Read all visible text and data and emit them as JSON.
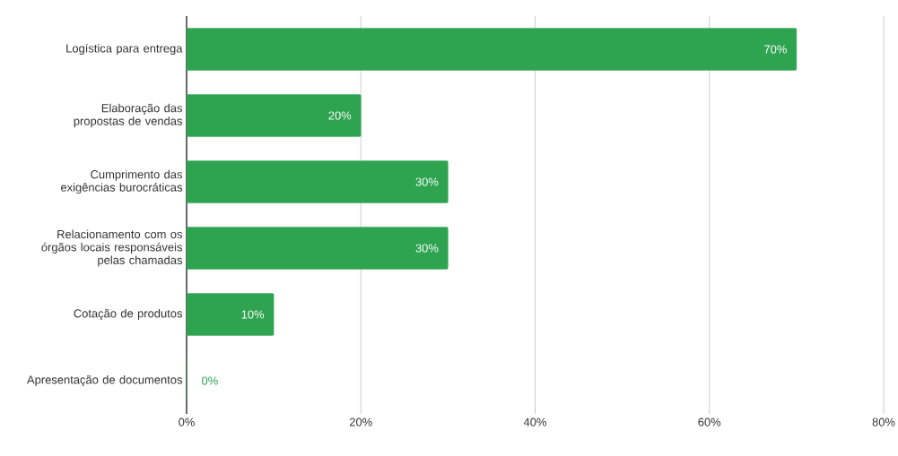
{
  "chart_data": {
    "type": "bar",
    "orientation": "horizontal",
    "categories": [
      "Logística para entrega",
      "Elaboração das propostas de vendas",
      "Cumprimento das exigências burocráticas",
      "Relacionamento com os órgãos locais responsáveis pelas chamadas",
      "Cotação de produtos",
      "Apresentação de documentos"
    ],
    "values": [
      70,
      20,
      30,
      30,
      10,
      0
    ],
    "value_labels": [
      "70%",
      "20%",
      "30%",
      "30%",
      "10%",
      "0%"
    ],
    "color": "#2ea350",
    "xlim": [
      0,
      80
    ],
    "xticks": [
      {
        "value": 0,
        "label": "0%"
      },
      {
        "value": 20,
        "label": "20%"
      },
      {
        "value": 40,
        "label": "40%"
      },
      {
        "value": 60,
        "label": "60%"
      },
      {
        "value": 80,
        "label": "80%"
      }
    ],
    "grid": "x"
  }
}
